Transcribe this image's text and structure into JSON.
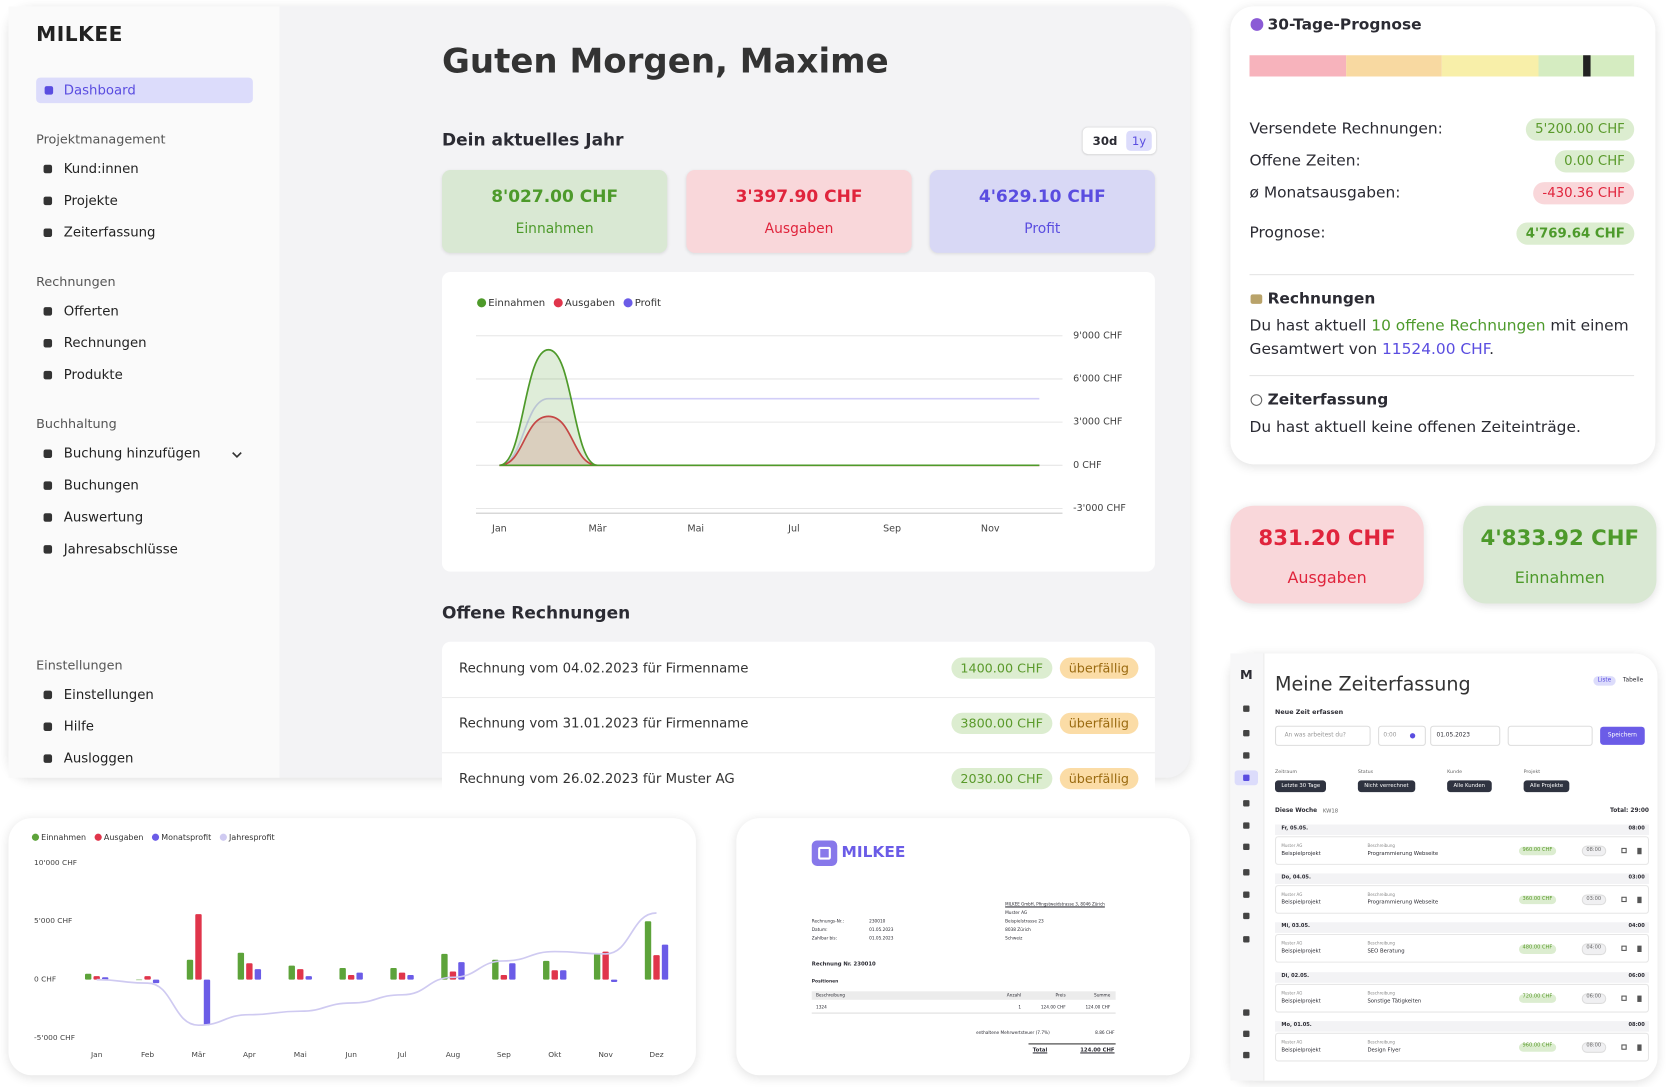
{
  "sidebar": {
    "brand": "MILKEE",
    "dashboard": "Dashboard",
    "groups": [
      {
        "title": "Projektmanagement",
        "items": [
          "Kund:innen",
          "Projekte",
          "Zeiterfassung"
        ]
      },
      {
        "title": "Rechnungen",
        "items": [
          "Offerten",
          "Rechnungen",
          "Produkte"
        ]
      },
      {
        "title": "Buchhaltung",
        "items": [
          "Buchung hinzufügen",
          "Buchungen",
          "Auswertung",
          "Jahresabschlüsse"
        ]
      },
      {
        "title": "Einstellungen",
        "items": [
          "Einstellungen",
          "Hilfe",
          "Ausloggen"
        ]
      }
    ]
  },
  "main": {
    "greeting": "Guten Morgen, Maxime",
    "year_title": "Dein aktuelles Jahr",
    "toggle": [
      "30d",
      "1y"
    ],
    "kpis": [
      {
        "value": "8'027.00 CHF",
        "label": "Einnahmen"
      },
      {
        "value": "3'397.90 CHF",
        "label": "Ausgaben"
      },
      {
        "value": "4'629.10 CHF",
        "label": "Profit"
      }
    ],
    "open_title": "Offene Rechnungen",
    "invoices": [
      {
        "text": "Rechnung vom 04.02.2023 für Firmenname",
        "amount": "1400.00 CHF",
        "status": "überfällig"
      },
      {
        "text": "Rechnung vom 31.01.2023 für Firmenname",
        "amount": "3800.00 CHF",
        "status": "überfällig"
      },
      {
        "text": "Rechnung vom 26.02.2023 für Muster AG",
        "amount": "2030.00 CHF",
        "status": "überfällig"
      }
    ]
  },
  "chart_data": [
    {
      "type": "line",
      "grid": true,
      "legend": "top-left",
      "categories": [
        "Jan",
        null,
        "Mär",
        null,
        "Mai",
        null,
        "Jul",
        null,
        "Sep",
        null,
        "Nov",
        null
      ],
      "series": [
        {
          "name": "Einnahmen",
          "color": "#4e9a2a",
          "fill": true,
          "values": [
            0,
            8027,
            0,
            0,
            0,
            0,
            0,
            0,
            0,
            0,
            0,
            0
          ]
        },
        {
          "name": "Ausgaben",
          "color": "#e0354b",
          "fill": true,
          "values": [
            0,
            3398,
            0,
            0,
            0,
            0,
            0,
            0,
            0,
            0,
            0,
            0
          ]
        },
        {
          "name": "Profit",
          "color": "#6b5ce7",
          "fill": false,
          "values": [
            0,
            4629,
            4629,
            4629,
            4629,
            4629,
            4629,
            4629,
            4629,
            4629,
            4629,
            4629
          ]
        }
      ],
      "ylim": [
        -3400,
        9000
      ],
      "yticks": [
        {
          "value": -3000,
          "label": "-3'000 CHF"
        },
        {
          "value": 0,
          "label": "0 CHF"
        },
        {
          "value": 3000,
          "label": "3'000 CHF"
        },
        {
          "value": 6000,
          "label": "6'000 CHF"
        },
        {
          "value": 9000,
          "label": "9'000 CHF"
        }
      ]
    },
    {
      "type": "bar",
      "grid": false,
      "legend": "top-left",
      "categories": [
        "Jan",
        "Feb",
        "Mär",
        "Apr",
        "Mai",
        "Jun",
        "Jul",
        "Aug",
        "Sep",
        "Okt",
        "Nov",
        "Dez"
      ],
      "series": [
        {
          "name": "Einnahmen",
          "color": "#5da33a",
          "type": "bar",
          "values": [
            500,
            0,
            1700,
            2300,
            1200,
            1000,
            1000,
            2200,
            1700,
            1600,
            2200,
            5000
          ]
        },
        {
          "name": "Ausgaben",
          "color": "#e0354b",
          "type": "bar",
          "values": [
            300,
            300,
            5600,
            1400,
            900,
            400,
            600,
            700,
            400,
            800,
            2400,
            2100
          ]
        },
        {
          "name": "Monatsprofit",
          "color": "#6b5ce7",
          "type": "bar",
          "values": [
            200,
            -300,
            -3900,
            900,
            300,
            600,
            400,
            1500,
            1400,
            800,
            -200,
            3000
          ]
        },
        {
          "name": "Jahresprofit",
          "color": "#cfcaf1",
          "type": "line",
          "values": [
            0,
            -300,
            -3900,
            -3000,
            -2700,
            -2000,
            -1300,
            200,
            1600,
            2400,
            2200,
            5700
          ]
        }
      ],
      "ylim": [
        -5800,
        10300
      ],
      "yticks": [
        {
          "value": -5000,
          "label": "-5'000 CHF"
        },
        {
          "value": 0,
          "label": "0 CHF"
        },
        {
          "value": 5000,
          "label": "5'000 CHF"
        },
        {
          "value": 10000,
          "label": "10'000 CHF"
        }
      ]
    }
  ],
  "forecast": {
    "title": "30-Tage-Prognose",
    "rows": [
      {
        "label": "Versendete Rechnungen:",
        "value": "5'200.00 CHF"
      },
      {
        "label": "Offene Zeiten:",
        "value": "0.00 CHF"
      },
      {
        "label": "ø Monatsausgaben:",
        "value": "-430.36 CHF"
      },
      {
        "label": "Prognose:",
        "value": "4'769.64 CHF"
      }
    ],
    "invoices": {
      "title": "Rechnungen",
      "text_1": "Du hast aktuell",
      "highlight": "10 offene Rechnungen",
      "text_2": "mit einem Gesamtwert von",
      "total": "11524.00 CHF",
      "text_3": "."
    },
    "time": {
      "title": "Zeiterfassung",
      "text": "Du hast aktuell keine offenen Zeiteinträge."
    }
  },
  "quick_stats": [
    {
      "value": "831.20 CHF",
      "label": "Ausgaben"
    },
    {
      "value": "4'833.92 CHF",
      "label": "Einnahmen"
    }
  ],
  "time_tracking": {
    "logo": "M",
    "title": "Meine Zeiterfassung",
    "tabs": [
      "Liste",
      "Tabelle"
    ],
    "new_entry": "Neue Zeit erfassen",
    "placeholder": "An was arbeitest du?",
    "duration": "0:00",
    "date": "01.05.2023",
    "save": "Speichern",
    "filters": [
      {
        "label": "Zeitraum",
        "value": "Letzte 30 Tage"
      },
      {
        "label": "Status",
        "value": "Nicht verrechnet"
      },
      {
        "label": "Kunde",
        "value": "Alle Kunden"
      },
      {
        "label": "Projekt",
        "value": "Alle Projekte"
      }
    ],
    "week": "Diese Woche",
    "week_no": "KW18",
    "total": "Total: 29:00",
    "days": [
      {
        "date": "Fr, 05.05.",
        "hours": "08:00",
        "customer": "Muster AG",
        "project": "Beispielprojekt",
        "desc_label": "Beschreibung",
        "desc": "Programmierung Webseite",
        "amount": "960.00 CHF",
        "duration": "08:00"
      },
      {
        "date": "Do, 04.05.",
        "hours": "03:00",
        "customer": "Muster AG",
        "project": "Beispielprojekt",
        "desc_label": "Beschreibung",
        "desc": "Programmierung Webseite",
        "amount": "360.00 CHF",
        "duration": "03:00"
      },
      {
        "date": "Mi, 03.05.",
        "hours": "04:00",
        "customer": "Muster AG",
        "project": "Beispielprojekt",
        "desc_label": "Beschreibung",
        "desc": "SEO Beratung",
        "amount": "480.00 CHF",
        "duration": "04:00"
      },
      {
        "date": "Di, 02.05.",
        "hours": "06:00",
        "customer": "Muster AG",
        "project": "Beispielprojekt",
        "desc_label": "Beschreibung",
        "desc": "Sonstige Tätigkeiten",
        "amount": "720.00 CHF",
        "duration": "06:00"
      },
      {
        "date": "Mo, 01.05.",
        "hours": "08:00",
        "customer": "Muster AG",
        "project": "Beispielprojekt",
        "desc_label": "Beschreibung",
        "desc": "Design Flyer",
        "amount": "960.00 CHF",
        "duration": "08:00"
      }
    ]
  },
  "invoice_document": {
    "brand": "MILKEE",
    "sender": "MILKEE GmbH, Pfingstweidstrasse 3, 8046 Zürich",
    "address": [
      "Muster AG",
      "Beispielstrasse 23",
      "8038 Zürich",
      "Schweiz"
    ],
    "meta": [
      {
        "label": "Rechnungs-Nr.:",
        "value": "230010"
      },
      {
        "label": "Datum:",
        "value": "01.05.2023"
      },
      {
        "label": "Zahlbar bis:",
        "value": "01.05.2023"
      }
    ],
    "heading": "Rechnung Nr. 230010",
    "positions": "Positionen",
    "columns": [
      "Beschreibung",
      "Anzahl",
      "Preis",
      "Summe"
    ],
    "rows": [
      [
        "1324",
        "1",
        "124.00 CHF",
        "124.00 CHF"
      ]
    ],
    "vat_label": "enthaltene Mehrwertsteuer (7.7%)",
    "vat_value": "8.86 CHF",
    "total_label": "Total",
    "total_value": "124.00 CHF"
  }
}
